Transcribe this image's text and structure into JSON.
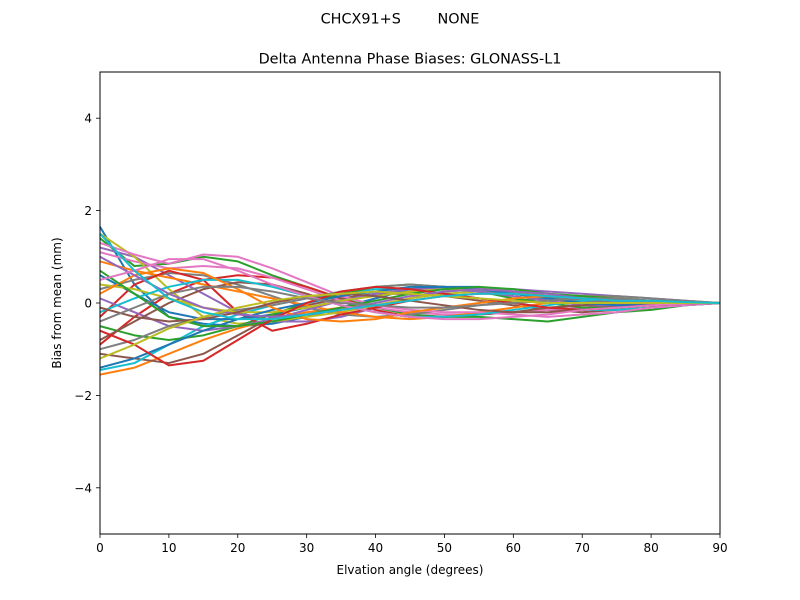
{
  "figure": {
    "suptitle": "CHCX91+S        NONE"
  },
  "chart_data": {
    "type": "line",
    "title": "Delta Antenna Phase Biases: GLONASS-L1",
    "xlabel": "Elvation angle (degrees)",
    "ylabel": "Bias from mean (mm)",
    "xlim": [
      0,
      90
    ],
    "ylim": [
      -5,
      5
    ],
    "xticks": [
      0,
      10,
      20,
      30,
      40,
      50,
      60,
      70,
      80,
      90
    ],
    "yticks": [
      -4,
      -2,
      0,
      2,
      4
    ],
    "xtick_labels": [
      "0",
      "10",
      "20",
      "30",
      "40",
      "50",
      "60",
      "70",
      "80",
      "90"
    ],
    "ytick_labels": [
      "−4",
      "−2",
      "0",
      "2",
      "4"
    ],
    "grid": false,
    "legend": "none",
    "x": [
      0,
      5,
      10,
      15,
      20,
      25,
      30,
      35,
      40,
      45,
      50,
      55,
      60,
      65,
      70,
      75,
      80,
      85,
      90
    ],
    "series": [
      {
        "color": "#1f77b4",
        "values": [
          1.65,
          0.4,
          -0.3,
          -0.45,
          -0.5,
          -0.45,
          -0.3,
          -0.1,
          0.1,
          0.3,
          0.35,
          0.35,
          0.25,
          0.1,
          0.05,
          0.05,
          0.05,
          0.02,
          0
        ]
      },
      {
        "color": "#ff7f0e",
        "values": [
          -1.55,
          -1.4,
          -1.1,
          -0.8,
          -0.55,
          -0.35,
          -0.2,
          -0.1,
          -0.05,
          0.1,
          0.25,
          0.3,
          0.25,
          0.15,
          0.05,
          0,
          0,
          0,
          0
        ]
      },
      {
        "color": "#2ca02c",
        "values": [
          1.4,
          0.8,
          0.85,
          1.0,
          0.9,
          0.6,
          0.35,
          0.1,
          -0.1,
          -0.25,
          -0.3,
          -0.3,
          -0.35,
          -0.4,
          -0.3,
          -0.2,
          -0.15,
          -0.05,
          0
        ]
      },
      {
        "color": "#d62728",
        "values": [
          -0.9,
          -0.3,
          0.2,
          0.5,
          0.6,
          0.55,
          0.35,
          0.1,
          -0.15,
          -0.3,
          -0.3,
          -0.25,
          -0.2,
          -0.15,
          -0.1,
          -0.05,
          0,
          0,
          0
        ]
      },
      {
        "color": "#9467bd",
        "values": [
          1.2,
          1.0,
          0.6,
          0.2,
          -0.2,
          -0.4,
          -0.4,
          -0.3,
          -0.1,
          0.1,
          0.25,
          0.3,
          0.3,
          0.25,
          0.2,
          0.15,
          0.1,
          0.05,
          0
        ]
      },
      {
        "color": "#8c564b",
        "values": [
          -1.1,
          -1.2,
          -1.3,
          -1.1,
          -0.7,
          -0.3,
          -0.05,
          0.1,
          0.2,
          0.2,
          0.15,
          0.05,
          -0.05,
          -0.15,
          -0.2,
          -0.15,
          -0.1,
          -0.05,
          0
        ]
      },
      {
        "color": "#e377c2",
        "values": [
          1.1,
          0.9,
          0.75,
          0.8,
          0.75,
          0.55,
          0.3,
          0.05,
          -0.1,
          -0.2,
          -0.25,
          -0.25,
          -0.2,
          -0.15,
          -0.1,
          -0.1,
          -0.05,
          -0.02,
          0
        ]
      },
      {
        "color": "#7f7f7f",
        "values": [
          0.3,
          0.5,
          0.65,
          0.6,
          0.4,
          0.15,
          -0.1,
          -0.25,
          -0.3,
          -0.25,
          -0.15,
          -0.05,
          0.05,
          0.1,
          0.15,
          0.15,
          0.1,
          0.05,
          0
        ]
      },
      {
        "color": "#bcbd22",
        "values": [
          1.5,
          1.0,
          0.3,
          -0.3,
          -0.45,
          -0.4,
          -0.3,
          -0.2,
          -0.05,
          0.1,
          0.2,
          0.25,
          0.2,
          0.15,
          0.1,
          0.05,
          0.05,
          0.02,
          0
        ]
      },
      {
        "color": "#17becf",
        "values": [
          -1.45,
          -1.3,
          -0.9,
          -0.5,
          -0.25,
          -0.05,
          0.1,
          0.2,
          0.3,
          0.3,
          0.2,
          0.1,
          0,
          -0.1,
          -0.15,
          -0.15,
          -0.1,
          -0.05,
          0
        ]
      },
      {
        "color": "#1f77b4",
        "values": [
          0.6,
          0.2,
          -0.2,
          -0.35,
          -0.35,
          -0.25,
          -0.1,
          0.05,
          0.2,
          0.3,
          0.35,
          0.3,
          0.2,
          0.1,
          0,
          -0.05,
          -0.05,
          -0.02,
          0
        ]
      },
      {
        "color": "#ff7f0e",
        "values": [
          0.9,
          0.7,
          0.55,
          0.4,
          0.25,
          0.1,
          -0.05,
          -0.2,
          -0.3,
          -0.35,
          -0.3,
          -0.2,
          -0.1,
          0,
          0.05,
          0.1,
          0.05,
          0.02,
          0
        ]
      },
      {
        "color": "#2ca02c",
        "values": [
          -0.5,
          -0.7,
          -0.8,
          -0.7,
          -0.5,
          -0.25,
          0,
          0.2,
          0.35,
          0.4,
          0.35,
          0.25,
          0.1,
          0,
          -0.1,
          -0.1,
          -0.05,
          -0.02,
          0
        ]
      },
      {
        "color": "#d62728",
        "values": [
          -0.3,
          0.4,
          0.7,
          0.5,
          -0.2,
          -0.6,
          -0.45,
          -0.25,
          -0.1,
          0.05,
          0.15,
          0.2,
          0.2,
          0.15,
          0.1,
          0.05,
          0.05,
          0.02,
          0
        ]
      },
      {
        "color": "#9467bd",
        "values": [
          0.1,
          -0.2,
          -0.5,
          -0.6,
          -0.5,
          -0.35,
          -0.15,
          0.05,
          0.2,
          0.3,
          0.3,
          0.25,
          0.15,
          0.05,
          -0.05,
          -0.05,
          -0.05,
          -0.02,
          0
        ]
      },
      {
        "color": "#8c564b",
        "values": [
          -0.8,
          -0.4,
          0.0,
          0.3,
          0.45,
          0.4,
          0.2,
          -0.05,
          -0.2,
          -0.3,
          -0.3,
          -0.25,
          -0.2,
          -0.1,
          -0.05,
          0,
          0,
          0,
          0
        ]
      },
      {
        "color": "#e377c2",
        "values": [
          1.3,
          1.05,
          0.85,
          1.05,
          1.0,
          0.75,
          0.45,
          0.15,
          -0.05,
          -0.15,
          -0.2,
          -0.2,
          -0.25,
          -0.3,
          -0.25,
          -0.2,
          -0.1,
          -0.05,
          0
        ]
      },
      {
        "color": "#7f7f7f",
        "values": [
          -1.0,
          -0.8,
          -0.5,
          -0.3,
          -0.15,
          -0.05,
          0.1,
          0.25,
          0.35,
          0.4,
          0.35,
          0.3,
          0.2,
          0.1,
          0.05,
          0,
          0,
          0,
          0
        ]
      },
      {
        "color": "#bcbd22",
        "values": [
          0.4,
          0.3,
          0.1,
          -0.1,
          -0.2,
          -0.2,
          -0.1,
          0.05,
          0.15,
          0.25,
          0.3,
          0.3,
          0.25,
          0.2,
          0.15,
          0.1,
          0.05,
          0.02,
          0
        ]
      },
      {
        "color": "#17becf",
        "values": [
          -0.2,
          0.1,
          0.35,
          0.5,
          0.5,
          0.35,
          0.15,
          -0.05,
          -0.2,
          -0.3,
          -0.3,
          -0.25,
          -0.15,
          -0.05,
          0.05,
          0.1,
          0.05,
          0.02,
          0
        ]
      },
      {
        "color": "#1f77b4",
        "values": [
          -1.4,
          -1.2,
          -0.9,
          -0.6,
          -0.35,
          -0.15,
          0.0,
          0.15,
          0.25,
          0.35,
          0.35,
          0.3,
          0.2,
          0.1,
          0,
          -0.05,
          -0.05,
          -0.02,
          0
        ]
      },
      {
        "color": "#ff7f0e",
        "values": [
          0.2,
          0.6,
          0.75,
          0.65,
          0.3,
          -0.1,
          -0.35,
          -0.4,
          -0.35,
          -0.2,
          -0.1,
          0,
          0.1,
          0.15,
          0.15,
          0.1,
          0.05,
          0.02,
          0
        ]
      },
      {
        "color": "#2ca02c",
        "values": [
          0.7,
          0.2,
          -0.3,
          -0.5,
          -0.5,
          -0.4,
          -0.25,
          -0.1,
          0.05,
          0.2,
          0.3,
          0.35,
          0.3,
          0.2,
          0.15,
          0.1,
          0.05,
          0.02,
          0
        ]
      },
      {
        "color": "#d62728",
        "values": [
          -0.6,
          -0.9,
          -1.35,
          -1.25,
          -0.8,
          -0.35,
          0.0,
          0.25,
          0.35,
          0.3,
          0.2,
          0.1,
          0,
          -0.1,
          -0.15,
          -0.1,
          -0.05,
          -0.02,
          0
        ]
      },
      {
        "color": "#9467bd",
        "values": [
          1.0,
          0.6,
          0.2,
          -0.1,
          -0.25,
          -0.3,
          -0.25,
          -0.15,
          0,
          0.15,
          0.25,
          0.3,
          0.25,
          0.2,
          0.1,
          0.05,
          0.05,
          0.02,
          0
        ]
      },
      {
        "color": "#8c564b",
        "values": [
          -0.1,
          -0.3,
          -0.4,
          -0.35,
          -0.2,
          0.0,
          0.15,
          0.2,
          0.15,
          0.05,
          -0.05,
          -0.15,
          -0.2,
          -0.2,
          -0.15,
          -0.1,
          -0.05,
          -0.02,
          0
        ]
      },
      {
        "color": "#e377c2",
        "values": [
          0.5,
          0.7,
          0.95,
          0.95,
          0.7,
          0.4,
          0.15,
          -0.05,
          -0.2,
          -0.3,
          -0.35,
          -0.35,
          -0.3,
          -0.25,
          -0.15,
          -0.1,
          -0.05,
          -0.02,
          0
        ]
      },
      {
        "color": "#7f7f7f",
        "values": [
          -0.4,
          -0.1,
          0.2,
          0.35,
          0.35,
          0.25,
          0.1,
          0,
          -0.05,
          -0.1,
          -0.1,
          -0.05,
          0,
          0.05,
          0.1,
          0.1,
          0.05,
          0.02,
          0
        ]
      },
      {
        "color": "#bcbd22",
        "values": [
          -1.2,
          -0.9,
          -0.55,
          -0.3,
          -0.1,
          0.05,
          0.15,
          0.2,
          0.25,
          0.2,
          0.15,
          0.1,
          0.05,
          0,
          0,
          0,
          0,
          0,
          0
        ]
      },
      {
        "color": "#17becf",
        "values": [
          1.5,
          0.7,
          0.1,
          -0.2,
          -0.35,
          -0.35,
          -0.25,
          -0.15,
          -0.05,
          0.05,
          0.15,
          0.2,
          0.2,
          0.15,
          0.1,
          0.05,
          0.05,
          0.02,
          0
        ]
      }
    ]
  }
}
